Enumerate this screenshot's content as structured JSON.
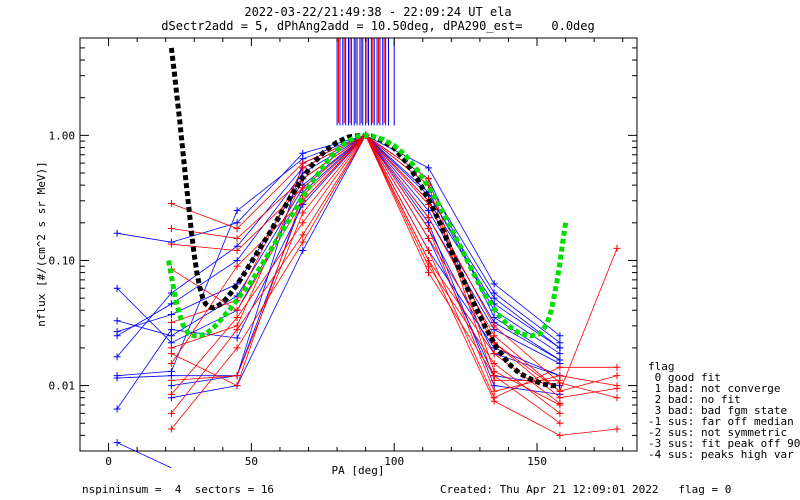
{
  "chart_data": {
    "type": "line",
    "title": "2022-03-22/21:49:38 - 22:09:24 UT ela",
    "subtitle": "dSectr2add = 5, dPhAng2add = 10.50deg, dPA290_est=    0.0deg",
    "xlabel": "PA [deg]",
    "ylabel": "nflux [#/(cm^2 s sr MeV)]",
    "xlim": [
      -10,
      185
    ],
    "ylim": [
      0.003,
      6.0
    ],
    "yscale": "log",
    "x_ticks": [
      "0",
      "50",
      "100",
      "150"
    ],
    "y_ticks": [
      "0.01",
      "0.10",
      "1.00"
    ],
    "legend": {
      "title": "flag",
      "entries": [
        " 0 good fit",
        " 1 bad: not converge",
        " 2 bad: no fit",
        " 3 bad: bad fgm state",
        "-1 sus: far off median",
        "-2 sus: not symmetric",
        "-3 sus: fit peak off 90",
        "-4 sus: peaks high var"
      ]
    },
    "footer_left": "nspininsum =  4  sectors = 16",
    "footer_right": "Created: Thu Apr 21 12:09:01 2022   flag = 0",
    "colors": {
      "blue_series": "#0000ff",
      "red_series": "#ff0000",
      "fit_black": "#000000",
      "fit_green": "#00dd00"
    },
    "pa_bins": [
      3,
      22,
      45,
      68,
      90,
      112,
      135,
      158,
      178
    ],
    "series_blue": [
      [
        0.0035,
        0.0022,
        null,
        0.4,
        1.0,
        0.12,
        0.02,
        0.012,
        null
      ],
      [
        0.0065,
        0.028,
        0.024,
        0.28,
        1.0,
        0.18,
        0.018,
        0.012,
        null
      ],
      [
        0.0115,
        0.012,
        0.012,
        0.3,
        1.0,
        0.22,
        0.028,
        0.015,
        null
      ],
      [
        0.012,
        0.013,
        0.25,
        0.65,
        1.0,
        0.45,
        0.035,
        0.016,
        null
      ],
      [
        0.017,
        0.055,
        0.13,
        0.55,
        1.0,
        0.35,
        0.04,
        0.018,
        null
      ],
      [
        0.025,
        0.045,
        0.1,
        0.5,
        1.0,
        0.3,
        0.045,
        0.02,
        null
      ],
      [
        0.027,
        0.037,
        0.065,
        0.45,
        1.0,
        0.33,
        0.05,
        0.02,
        null
      ],
      [
        0.033,
        0.025,
        0.052,
        0.38,
        1.0,
        0.4,
        0.055,
        0.022,
        null
      ],
      [
        0.06,
        0.022,
        0.04,
        0.35,
        1.0,
        0.25,
        0.032,
        0.016,
        null
      ],
      [
        0.165,
        0.14,
        0.2,
        0.72,
        1.0,
        0.55,
        0.065,
        0.025,
        null
      ],
      [
        null,
        0.008,
        0.01,
        0.12,
        1.0,
        0.15,
        0.012,
        0.01,
        null
      ],
      [
        null,
        0.01,
        0.012,
        0.6,
        1.0,
        0.2,
        0.01,
        0.0085,
        null
      ]
    ],
    "series_red": [
      [
        null,
        0.0045,
        0.02,
        0.14,
        1.0,
        0.08,
        0.012,
        0.005,
        null
      ],
      [
        null,
        0.006,
        0.028,
        0.16,
        1.0,
        0.09,
        0.015,
        0.006,
        null
      ],
      [
        null,
        0.0085,
        0.035,
        0.2,
        1.0,
        0.1,
        0.018,
        0.0072,
        null
      ],
      [
        null,
        0.011,
        0.012,
        0.24,
        1.0,
        0.15,
        0.022,
        0.008,
        0.0095
      ],
      [
        null,
        0.015,
        0.09,
        0.3,
        1.0,
        0.22,
        0.025,
        0.009,
        0.012
      ],
      [
        null,
        0.018,
        0.01,
        0.33,
        1.0,
        0.28,
        0.03,
        0.0105,
        0.008
      ],
      [
        null,
        0.02,
        0.03,
        0.45,
        1.0,
        0.18,
        0.009,
        0.012,
        0.01
      ],
      [
        null,
        0.032,
        0.048,
        0.55,
        1.0,
        0.12,
        0.008,
        0.014,
        0.014
      ],
      [
        null,
        0.085,
        0.04,
        0.3,
        1.0,
        0.1,
        0.0075,
        0.004,
        0.0045
      ],
      [
        null,
        0.135,
        0.12,
        0.38,
        1.0,
        0.3,
        0.022,
        0.009,
        0.125
      ],
      [
        null,
        0.18,
        0.15,
        0.45,
        1.0,
        0.45,
        0.013,
        0.007,
        null
      ],
      [
        null,
        0.285,
        0.18,
        0.6,
        1.0,
        0.4,
        0.011,
        0.011,
        null
      ]
    ],
    "fit_black": {
      "x": [
        22,
        23,
        24,
        25,
        26,
        27,
        28,
        29,
        30,
        31,
        32,
        33,
        34,
        35,
        36,
        37,
        38,
        40,
        42,
        45,
        48,
        52,
        56,
        60,
        64,
        68,
        72,
        76,
        80,
        84,
        88,
        90,
        92,
        96,
        100,
        104,
        108,
        112,
        116,
        120,
        124,
        128,
        132,
        136,
        140,
        144,
        148,
        152,
        155,
        158
      ],
      "y": [
        5.0,
        3.2,
        2.0,
        1.25,
        0.75,
        0.45,
        0.28,
        0.17,
        0.11,
        0.078,
        0.06,
        0.05,
        0.045,
        0.043,
        0.042,
        0.042,
        0.043,
        0.046,
        0.052,
        0.064,
        0.082,
        0.115,
        0.16,
        0.23,
        0.33,
        0.46,
        0.61,
        0.76,
        0.88,
        0.97,
        1.0,
        1.0,
        0.99,
        0.91,
        0.79,
        0.62,
        0.45,
        0.31,
        0.2,
        0.12,
        0.072,
        0.045,
        0.029,
        0.02,
        0.015,
        0.0125,
        0.0112,
        0.0103,
        0.01,
        0.01
      ]
    },
    "fit_green": {
      "x": [
        21,
        22,
        23,
        24,
        25,
        26,
        27,
        28,
        30,
        32,
        34,
        36,
        38,
        40,
        43,
        46,
        50,
        54,
        58,
        62,
        66,
        70,
        74,
        78,
        82,
        86,
        88,
        90,
        92,
        96,
        100,
        104,
        108,
        112,
        116,
        120,
        124,
        128,
        132,
        136,
        140,
        144,
        148,
        151,
        153,
        154,
        155,
        156,
        157,
        158,
        159,
        160
      ],
      "y": [
        0.1,
        0.075,
        0.056,
        0.044,
        0.036,
        0.031,
        0.028,
        0.026,
        0.025,
        0.025,
        0.026,
        0.028,
        0.031,
        0.035,
        0.042,
        0.052,
        0.068,
        0.095,
        0.135,
        0.19,
        0.27,
        0.38,
        0.52,
        0.68,
        0.84,
        0.96,
        0.995,
        1.0,
        0.99,
        0.93,
        0.83,
        0.69,
        0.53,
        0.39,
        0.27,
        0.18,
        0.118,
        0.077,
        0.052,
        0.038,
        0.03,
        0.026,
        0.025,
        0.026,
        0.03,
        0.034,
        0.04,
        0.052,
        0.068,
        0.095,
        0.14,
        0.2
      ]
    },
    "spike_x_blue": [
      80,
      81,
      82,
      83,
      84,
      85,
      86,
      87,
      88,
      89,
      90,
      91,
      92,
      93,
      94,
      95,
      96,
      97,
      98,
      100
    ],
    "spike_x_red": [
      80.5,
      82.5,
      84.5,
      86.5,
      88.5,
      90.5,
      92.5,
      94.5,
      96.5
    ]
  }
}
